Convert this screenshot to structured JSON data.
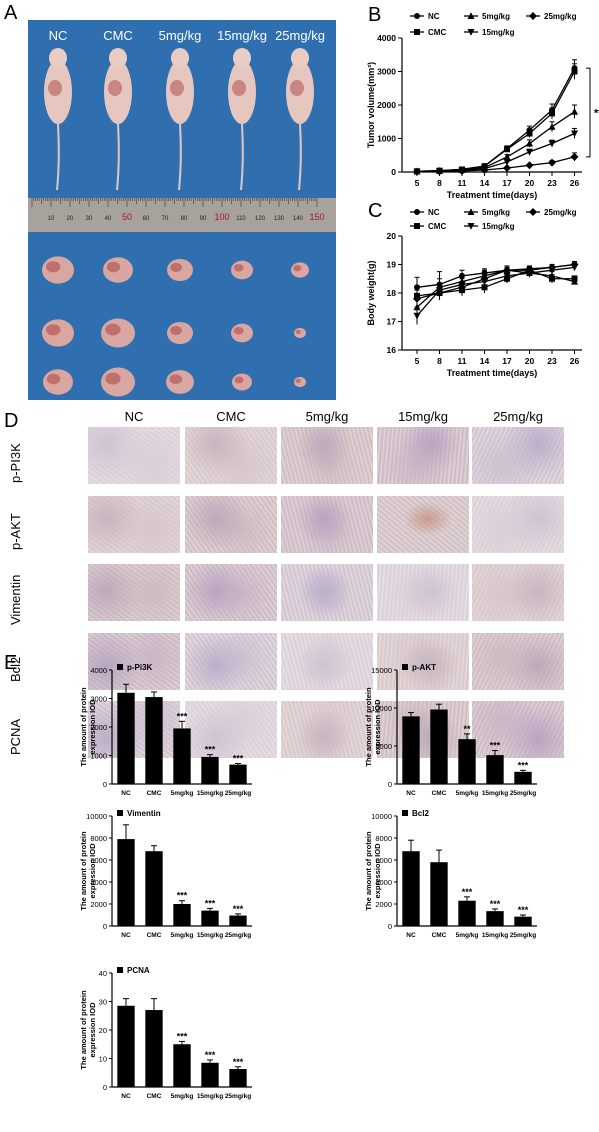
{
  "panels": {
    "A": "A",
    "B": "B",
    "C": "C",
    "D": "D",
    "E": "E"
  },
  "panelA": {
    "group_labels": [
      "NC",
      "CMC",
      "5mg/kg",
      "15mg/kg",
      "25mg/kg"
    ],
    "ruler_labels": [
      "10",
      "20",
      "30",
      "40",
      "50",
      "60",
      "70",
      "80",
      "90",
      "100",
      "110",
      "120",
      "130",
      "140",
      "150"
    ]
  },
  "chart_data": [
    {
      "id": "B",
      "type": "line",
      "ylabel": "Tumor volume(mm³)",
      "xlabel": "Treatment  time(days)",
      "x": [
        5,
        8,
        11,
        14,
        17,
        20,
        23,
        26
      ],
      "ylim": [
        0,
        4000
      ],
      "yticks": [
        0,
        1000,
        2000,
        3000,
        4000
      ],
      "series": [
        {
          "name": "NC",
          "marker": "circle",
          "values": [
            20,
            40,
            80,
            180,
            700,
            1250,
            1850,
            3100
          ],
          "err": [
            10,
            15,
            20,
            40,
            80,
            120,
            180,
            250
          ]
        },
        {
          "name": "CMC",
          "marker": "square",
          "values": [
            20,
            40,
            75,
            170,
            680,
            1150,
            1750,
            3000
          ],
          "err": [
            10,
            15,
            20,
            40,
            80,
            120,
            160,
            230
          ]
        },
        {
          "name": "5mg/kg",
          "marker": "triangle-up",
          "values": [
            15,
            35,
            60,
            130,
            450,
            850,
            1350,
            1800
          ],
          "err": [
            10,
            10,
            15,
            30,
            70,
            110,
            150,
            200
          ]
        },
        {
          "name": "15mg/kg",
          "marker": "triangle-down",
          "values": [
            15,
            30,
            50,
            100,
            300,
            600,
            850,
            1150
          ],
          "err": [
            8,
            10,
            12,
            20,
            50,
            80,
            100,
            150
          ]
        },
        {
          "name": "25mg/kg",
          "marker": "diamond",
          "values": [
            10,
            20,
            30,
            60,
            120,
            200,
            280,
            450
          ],
          "err": [
            5,
            8,
            10,
            15,
            25,
            40,
            60,
            120
          ]
        }
      ],
      "legend": "top",
      "annotation": "**"
    },
    {
      "id": "C",
      "type": "line",
      "ylabel": "Body weight(g)",
      "xlabel": "Treatment time(days)",
      "x": [
        5,
        8,
        11,
        14,
        17,
        20,
        23,
        26
      ],
      "ylim": [
        16,
        20
      ],
      "yticks": [
        16,
        17,
        18,
        19,
        20
      ],
      "series": [
        {
          "name": "NC",
          "marker": "circle",
          "values": [
            18.2,
            18.3,
            18.6,
            18.7,
            18.8,
            18.85,
            18.9,
            19.0
          ],
          "err": [
            0.35,
            0.45,
            0.2,
            0.15,
            0.1,
            0.1,
            0.1,
            0.1
          ]
        },
        {
          "name": "CMC",
          "marker": "square",
          "values": [
            17.9,
            18.0,
            18.1,
            18.2,
            18.5,
            18.8,
            18.5,
            18.5
          ],
          "err": [
            0.3,
            0.25,
            0.2,
            0.2,
            0.15,
            0.12,
            0.15,
            0.1
          ]
        },
        {
          "name": "5mg/kg",
          "marker": "triangle-up",
          "values": [
            17.5,
            18.2,
            18.4,
            18.6,
            18.8,
            18.7,
            18.6,
            18.4
          ],
          "err": [
            0.4,
            0.3,
            0.2,
            0.2,
            0.15,
            0.15,
            0.15,
            0.1
          ]
        },
        {
          "name": "15mg/kg",
          "marker": "triangle-down",
          "values": [
            17.2,
            18.1,
            18.3,
            18.4,
            18.6,
            18.7,
            18.8,
            18.9
          ],
          "err": [
            0.3,
            0.25,
            0.2,
            0.2,
            0.15,
            0.1,
            0.1,
            0.1
          ]
        },
        {
          "name": "25mg/kg",
          "marker": "diamond",
          "values": [
            17.8,
            18.0,
            18.2,
            18.5,
            18.8,
            18.8,
            18.9,
            19.0
          ],
          "err": [
            0.3,
            0.2,
            0.2,
            0.15,
            0.1,
            0.1,
            0.1,
            0.1
          ]
        }
      ],
      "legend": "top"
    },
    {
      "id": "E1",
      "type": "bar",
      "legend_label": "p-Pi3K",
      "ylabel": "The amount of protein expression IOD",
      "categories": [
        "NC",
        "CMC",
        "5mg/kg",
        "15mg/kg",
        "25mg/kg"
      ],
      "values": [
        3200,
        3050,
        1950,
        950,
        680
      ],
      "err": [
        300,
        180,
        250,
        80,
        40
      ],
      "stars": [
        "",
        "",
        "***",
        "***",
        "***"
      ],
      "ylim": [
        0,
        4000
      ],
      "yticks": [
        0,
        1000,
        2000,
        3000,
        4000
      ]
    },
    {
      "id": "E2",
      "type": "bar",
      "legend_label": "p-AKT",
      "ylabel": "The amount of protein expression IOD",
      "categories": [
        "NC",
        "CMC",
        "5mg/kg",
        "15mg/kg",
        "25mg/kg"
      ],
      "values": [
        8900,
        9800,
        5900,
        3800,
        1600
      ],
      "err": [
        500,
        700,
        700,
        600,
        200
      ],
      "stars": [
        "",
        "",
        "**",
        "***",
        "***"
      ],
      "ylim": [
        0,
        15000
      ],
      "yticks": [
        0,
        5000,
        10000,
        15000
      ]
    },
    {
      "id": "E3",
      "type": "bar",
      "legend_label": "Vimentin",
      "ylabel": "The amount of protein expression IOD",
      "categories": [
        "NC",
        "CMC",
        "5mg/kg",
        "15mg/kg",
        "25mg/kg"
      ],
      "values": [
        7900,
        6800,
        2000,
        1400,
        950
      ],
      "err": [
        1300,
        500,
        300,
        200,
        150
      ],
      "stars": [
        "",
        "",
        "***",
        "***",
        "***"
      ],
      "ylim": [
        0,
        10000
      ],
      "yticks": [
        0,
        2000,
        4000,
        6000,
        8000,
        10000
      ]
    },
    {
      "id": "E4",
      "type": "bar",
      "legend_label": "Bcl2",
      "ylabel": "The amount of protein expression IOD",
      "categories": [
        "NC",
        "CMC",
        "5mg/kg",
        "15mg/kg",
        "25mg/kg"
      ],
      "values": [
        6800,
        5800,
        2300,
        1350,
        850
      ],
      "err": [
        1000,
        1100,
        350,
        200,
        150
      ],
      "stars": [
        "",
        "",
        "***",
        "***",
        "***"
      ],
      "ylim": [
        0,
        10000
      ],
      "yticks": [
        0,
        2000,
        4000,
        6000,
        8000,
        10000
      ]
    },
    {
      "id": "E5",
      "type": "bar",
      "legend_label": "PCNA",
      "ylabel": "The amount of protein expression IOD",
      "categories": [
        "NC",
        "CMC",
        "5mg/kg",
        "15mg/kg",
        "25mg/kg"
      ],
      "values": [
        28.5,
        27,
        15,
        8.5,
        6.3
      ],
      "err": [
        2.5,
        4,
        1,
        1,
        0.8
      ],
      "stars": [
        "",
        "",
        "***",
        "***",
        "***"
      ],
      "ylim": [
        0,
        40
      ],
      "yticks": [
        0,
        10,
        20,
        30,
        40
      ]
    }
  ],
  "panelD": {
    "columns": [
      "NC",
      "CMC",
      "5mg/kg",
      "15mg/kg",
      "25mg/kg"
    ],
    "rows": [
      "p-PI3K",
      "p-AKT",
      "Vimentin",
      "Bcl2",
      "PCNA"
    ]
  }
}
